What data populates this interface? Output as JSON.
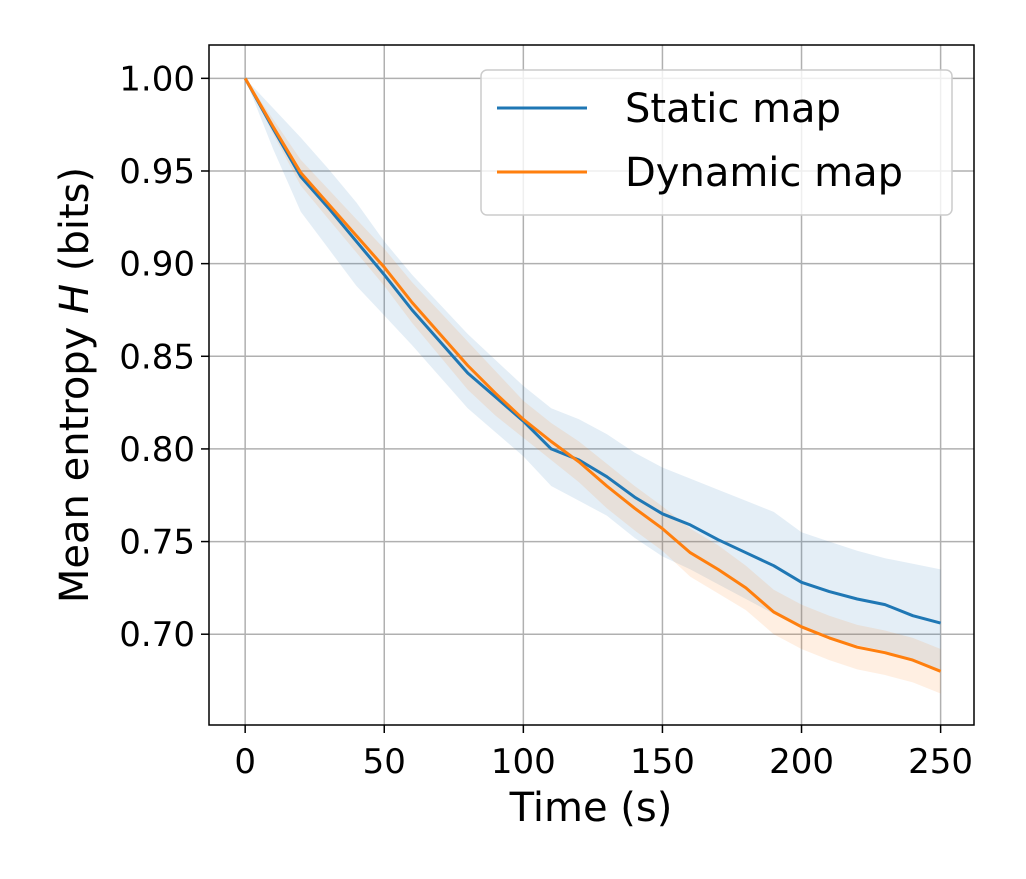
{
  "chart_data": {
    "type": "line",
    "title": "",
    "xlabel": "Time (s)",
    "ylabel_prefix": "Mean entropy ",
    "ylabel_var": "H",
    "ylabel_suffix": " (bits)",
    "xlim": [
      -13,
      262
    ],
    "ylim": [
      0.651,
      1.018
    ],
    "xticks": [
      0,
      50,
      100,
      150,
      200,
      250
    ],
    "xtick_labels": [
      "0",
      "50",
      "100",
      "150",
      "200",
      "250"
    ],
    "yticks": [
      0.7,
      0.75,
      0.8,
      0.85,
      0.9,
      0.95,
      1.0
    ],
    "ytick_labels": [
      "0.70",
      "0.75",
      "0.80",
      "0.85",
      "0.90",
      "0.95",
      "1.00"
    ],
    "grid": true,
    "legend_position": "top-right",
    "x": [
      0,
      10,
      20,
      30,
      40,
      50,
      60,
      70,
      80,
      90,
      100,
      110,
      120,
      130,
      140,
      150,
      160,
      170,
      180,
      190,
      200,
      210,
      220,
      230,
      240,
      250
    ],
    "series": [
      {
        "name": "Static map",
        "color": "#1f77b4",
        "values": [
          1.0,
          0.973,
          0.947,
          0.93,
          0.912,
          0.894,
          0.875,
          0.858,
          0.841,
          0.828,
          0.815,
          0.8,
          0.794,
          0.785,
          0.774,
          0.765,
          0.759,
          0.751,
          0.744,
          0.737,
          0.728,
          0.723,
          0.719,
          0.716,
          0.71,
          0.706
        ],
        "band_upper": [
          1.0,
          0.984,
          0.968,
          0.951,
          0.933,
          0.912,
          0.894,
          0.878,
          0.862,
          0.848,
          0.834,
          0.822,
          0.816,
          0.808,
          0.798,
          0.79,
          0.784,
          0.778,
          0.772,
          0.766,
          0.755,
          0.75,
          0.745,
          0.741,
          0.738,
          0.735
        ],
        "band_lower": [
          1.0,
          0.962,
          0.928,
          0.908,
          0.888,
          0.872,
          0.856,
          0.839,
          0.822,
          0.809,
          0.796,
          0.78,
          0.772,
          0.764,
          0.752,
          0.742,
          0.735,
          0.727,
          0.719,
          0.711,
          0.703,
          0.698,
          0.694,
          0.691,
          0.685,
          0.68
        ]
      },
      {
        "name": "Dynamic map",
        "color": "#ff7f0e",
        "values": [
          1.0,
          0.974,
          0.949,
          0.932,
          0.915,
          0.898,
          0.879,
          0.862,
          0.845,
          0.83,
          0.816,
          0.804,
          0.793,
          0.78,
          0.768,
          0.757,
          0.744,
          0.735,
          0.725,
          0.712,
          0.704,
          0.698,
          0.693,
          0.69,
          0.686,
          0.68
        ],
        "band_upper": [
          1.0,
          0.978,
          0.956,
          0.94,
          0.924,
          0.908,
          0.89,
          0.874,
          0.858,
          0.842,
          0.826,
          0.814,
          0.804,
          0.792,
          0.78,
          0.769,
          0.757,
          0.748,
          0.737,
          0.724,
          0.716,
          0.71,
          0.705,
          0.702,
          0.698,
          0.692
        ],
        "band_lower": [
          1.0,
          0.97,
          0.942,
          0.924,
          0.906,
          0.888,
          0.868,
          0.85,
          0.832,
          0.818,
          0.806,
          0.794,
          0.782,
          0.768,
          0.756,
          0.745,
          0.731,
          0.722,
          0.713,
          0.7,
          0.692,
          0.686,
          0.681,
          0.678,
          0.674,
          0.668
        ]
      }
    ]
  }
}
